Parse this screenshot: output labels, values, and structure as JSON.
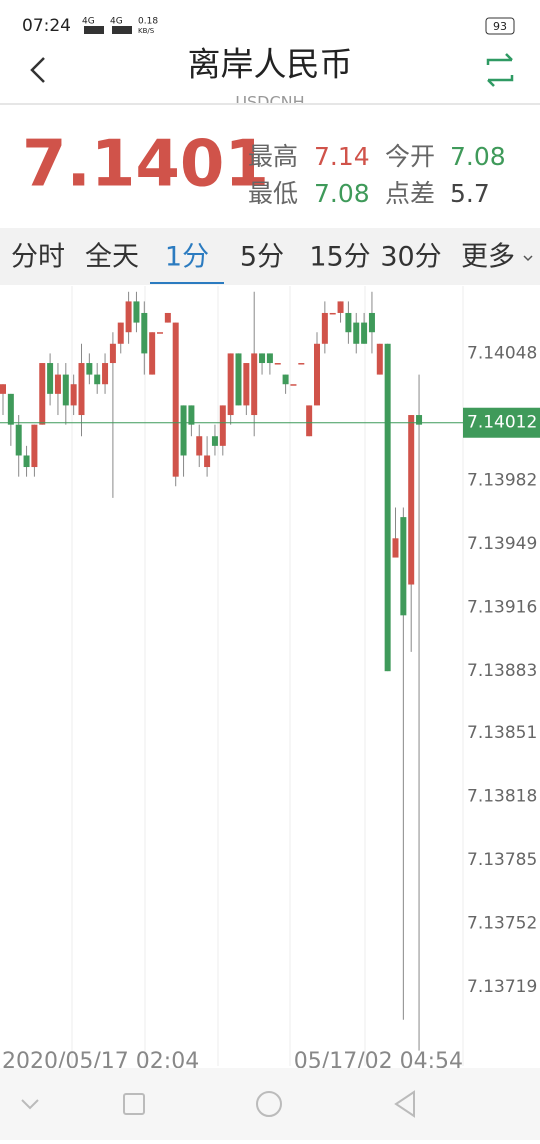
{
  "status_bar": {
    "time": "07:24",
    "signal_1": "4G",
    "signal_2": "4G",
    "speed": "0.18",
    "speed_unit": "KB/S",
    "battery": "93"
  },
  "header": {
    "title": "离岸人民币",
    "subtitle": "USDCNH"
  },
  "quote": {
    "price": "7.1401",
    "high_label": "最高",
    "high": "7.14",
    "open_label": "今开",
    "open": "7.08",
    "low_label": "最低",
    "low": "7.08",
    "spread_label": "点差",
    "spread": "5.7"
  },
  "tabs": {
    "items": [
      "分时",
      "全天",
      "1分",
      "5分",
      "15分",
      "30分",
      "更多"
    ],
    "active": 2
  },
  "chart_data": {
    "type": "candlestick",
    "up_color": "#d0534a",
    "down_color": "#3f9a5a",
    "ylim": [
      7.13678,
      7.14083
    ],
    "yticks": [
      7.14048,
      7.13982,
      7.13949,
      7.13916,
      7.13883,
      7.13851,
      7.13818,
      7.13785,
      7.13752,
      7.13719
    ],
    "last_price": 7.14012,
    "x_labels": [
      "2020/05/17 02:04",
      "05/17/02 04:54"
    ],
    "open": [
      7.14027,
      7.14027,
      7.14011,
      7.13995,
      7.13989,
      7.14011,
      7.14043,
      7.14027,
      7.14037,
      7.14021,
      7.14016,
      7.14043,
      7.14037,
      7.14032,
      7.14043,
      7.14053,
      7.14059,
      7.14075,
      7.14069,
      7.14037,
      7.14059,
      7.14064,
      7.13984,
      7.14021,
      7.14021,
      7.13995,
      7.13989,
      7.14005,
      7.14,
      7.14016,
      7.14048,
      7.14021,
      7.14016,
      7.14048,
      7.14048,
      7.14043,
      7.14037,
      7.14032,
      7.14043,
      7.14005,
      7.14021,
      7.14053,
      7.14069,
      7.14069,
      7.14069,
      7.14064,
      7.14064,
      7.14069,
      7.14037,
      7.14053,
      7.13942,
      7.13963,
      7.13928,
      7.14016
    ],
    "high": [
      7.14032,
      7.14027,
      7.14016,
      7.14,
      7.14011,
      7.14043,
      7.14048,
      7.14043,
      7.14043,
      7.14037,
      7.14053,
      7.14048,
      7.14043,
      7.14048,
      7.14059,
      7.14064,
      7.1408,
      7.1408,
      7.14075,
      7.14059,
      7.14059,
      7.14069,
      7.14064,
      7.14021,
      7.14021,
      7.14011,
      7.14005,
      7.14011,
      7.14021,
      7.14048,
      7.14048,
      7.14043,
      7.1408,
      7.14048,
      7.14048,
      7.14043,
      7.14037,
      7.14032,
      7.14043,
      7.14021,
      7.14059,
      7.14075,
      7.14069,
      7.14075,
      7.14075,
      7.14069,
      7.14069,
      7.1408,
      7.14053,
      7.14053,
      7.13968,
      7.13968,
      7.14016,
      7.14037
    ],
    "low": [
      7.14016,
      7.14,
      7.13984,
      7.13984,
      7.13984,
      7.14011,
      7.14021,
      7.14016,
      7.14011,
      7.14016,
      7.14005,
      7.14032,
      7.14027,
      7.14027,
      7.13973,
      7.14048,
      7.14053,
      7.14059,
      7.14037,
      7.14037,
      7.14059,
      7.14064,
      7.13979,
      7.13984,
      7.14005,
      7.13989,
      7.13984,
      7.13995,
      7.13995,
      7.14011,
      7.14021,
      7.14016,
      7.14005,
      7.14037,
      7.14037,
      7.14043,
      7.14027,
      7.14032,
      7.14043,
      7.14005,
      7.14021,
      7.14048,
      7.14069,
      7.14064,
      7.14053,
      7.14048,
      7.14053,
      7.14048,
      7.14037,
      7.13883,
      7.13942,
      7.13702,
      7.13893,
      7.13686
    ],
    "close": [
      7.14032,
      7.14011,
      7.13995,
      7.13989,
      7.14011,
      7.14043,
      7.14027,
      7.14037,
      7.14021,
      7.14032,
      7.14043,
      7.14037,
      7.14032,
      7.14043,
      7.14053,
      7.14064,
      7.14075,
      7.14064,
      7.14048,
      7.14059,
      7.14059,
      7.14069,
      7.14064,
      7.13995,
      7.14011,
      7.14005,
      7.13995,
      7.14,
      7.14021,
      7.14048,
      7.14021,
      7.14043,
      7.14048,
      7.14043,
      7.14043,
      7.14043,
      7.14032,
      7.14032,
      7.14043,
      7.14021,
      7.14053,
      7.14069,
      7.14069,
      7.14075,
      7.14059,
      7.14053,
      7.14053,
      7.14059,
      7.14053,
      7.13883,
      7.13952,
      7.13912,
      7.14016,
      7.14011
    ]
  }
}
